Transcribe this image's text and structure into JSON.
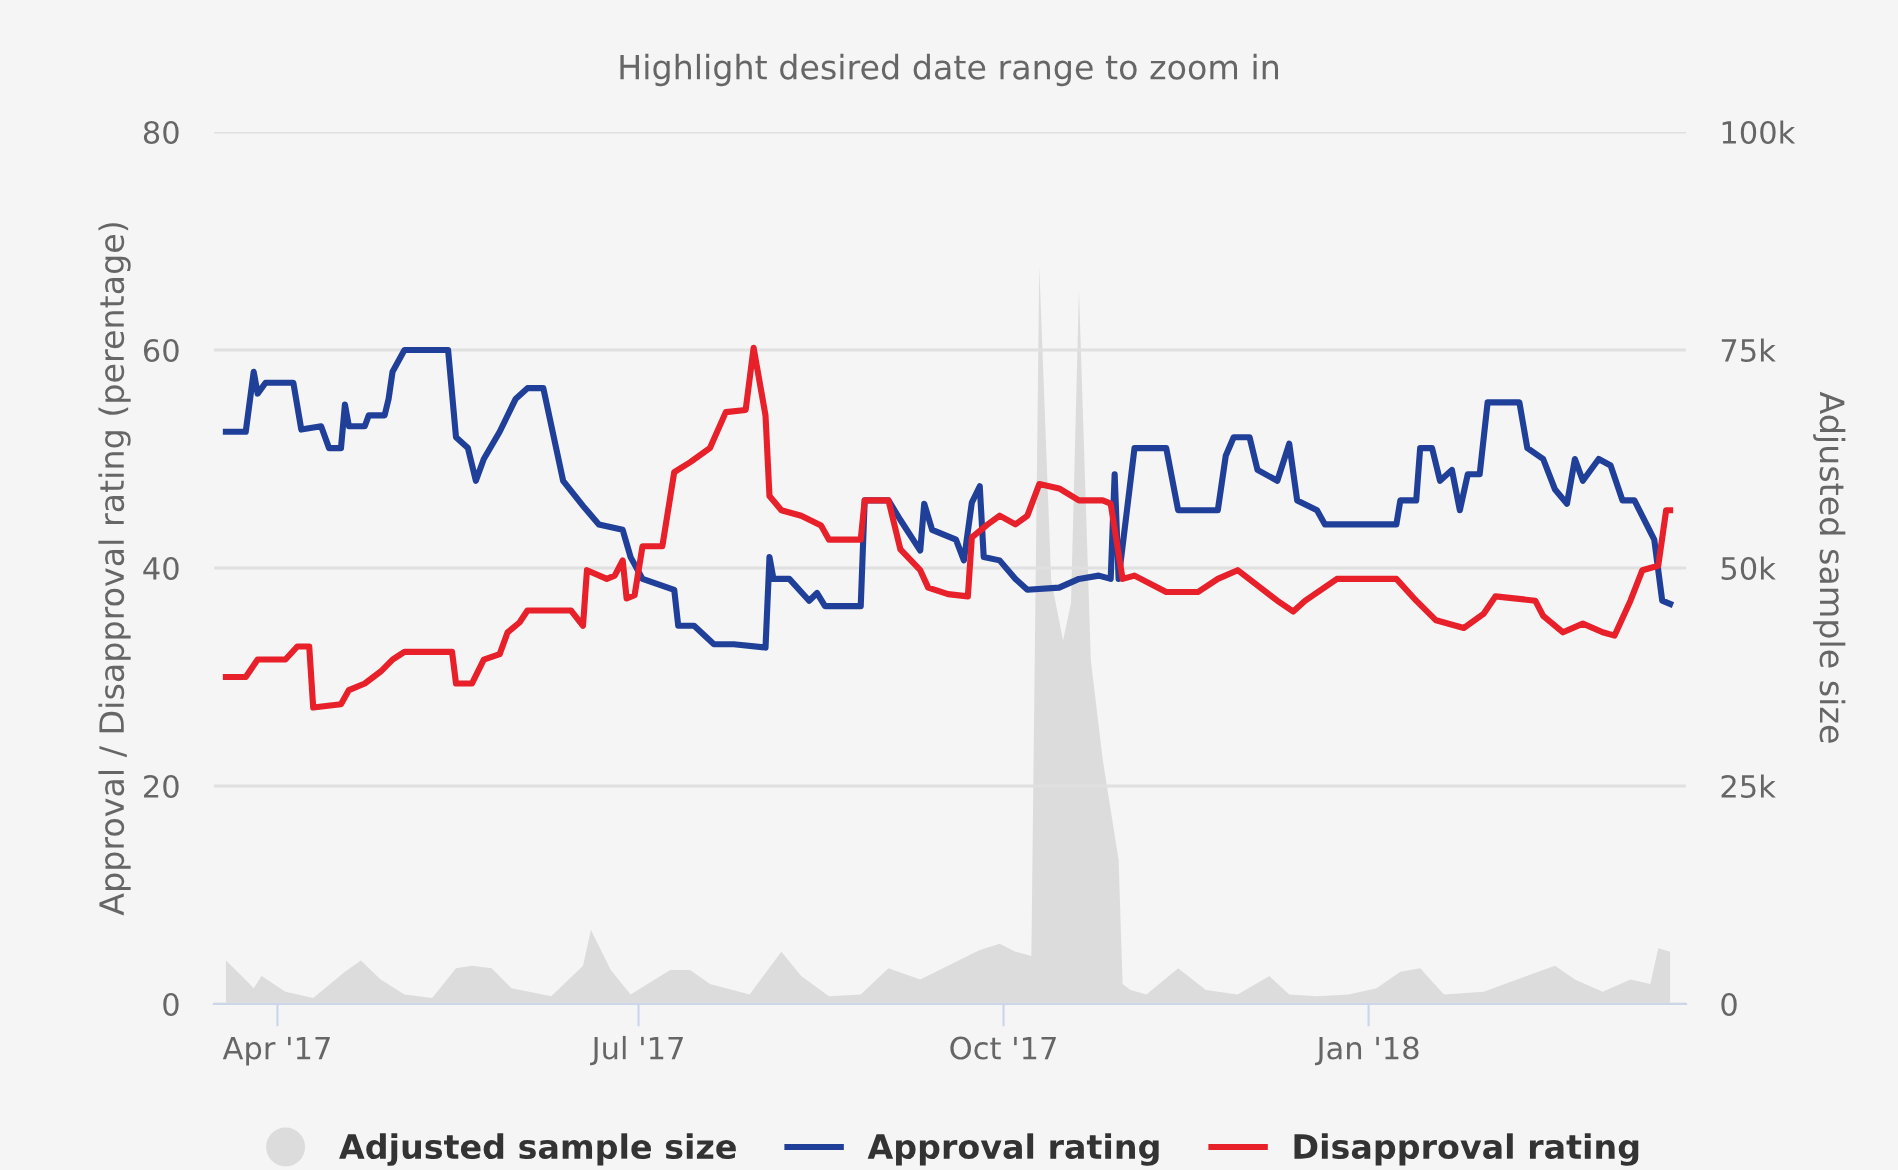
{
  "chart_data": {
    "type": "line",
    "subtitle": "Highlight desired date range to zoom in",
    "ylabel": "Approval / Disapproval rating (perentage)",
    "y2label": "Adjusted sample size",
    "xlim": [
      "2017-03-16",
      "2018-03-22"
    ],
    "xticks": [
      {
        "value": "2017-04-01",
        "label": "Apr '17"
      },
      {
        "value": "2017-07-01",
        "label": "Jul '17"
      },
      {
        "value": "2017-10-01",
        "label": "Oct '17"
      },
      {
        "value": "2018-01-01",
        "label": "Jan '18"
      }
    ],
    "ylim": [
      0,
      80
    ],
    "yticks": [
      0,
      20,
      40,
      60,
      80
    ],
    "y2lim": [
      0,
      100000
    ],
    "y2ticks": [
      0,
      {
        "value": 25000,
        "label": "25k"
      },
      {
        "value": 50000,
        "label": "50k"
      },
      {
        "value": 75000,
        "label": "75k"
      },
      {
        "value": 100000,
        "label": "100k"
      }
    ],
    "grid": "y",
    "legend": "bottom",
    "series": [
      {
        "name": "Adjusted sample size",
        "type": "area",
        "axis": "y2",
        "color": "#dcdcdc",
        "x": [
          "2017-03-19",
          "2017-03-23",
          "2017-03-26",
          "2017-03-28",
          "2017-04-03",
          "2017-04-10",
          "2017-04-18",
          "2017-04-22",
          "2017-04-27",
          "2017-05-03",
          "2017-05-10",
          "2017-05-16",
          "2017-05-20",
          "2017-05-25",
          "2017-05-30",
          "2017-06-09",
          "2017-06-17",
          "2017-06-19",
          "2017-06-24",
          "2017-06-29",
          "2017-07-09",
          "2017-07-14",
          "2017-07-19",
          "2017-07-29",
          "2017-08-06",
          "2017-08-11",
          "2017-08-18",
          "2017-08-26",
          "2017-09-02",
          "2017-09-10",
          "2017-09-17",
          "2017-09-25",
          "2017-09-30",
          "2017-10-04",
          "2017-10-08",
          "2017-10-10",
          "2017-10-13",
          "2017-10-16",
          "2017-10-18",
          "2017-10-20",
          "2017-10-23",
          "2017-10-26",
          "2017-10-30",
          "2017-10-31",
          "2017-11-02",
          "2017-11-06",
          "2017-11-14",
          "2017-11-21",
          "2017-11-29",
          "2017-12-07",
          "2017-12-12",
          "2017-12-19",
          "2017-12-27",
          "2018-01-03",
          "2018-01-09",
          "2018-01-14",
          "2018-01-20",
          "2018-01-30",
          "2018-02-11",
          "2018-02-17",
          "2018-02-22",
          "2018-03-01",
          "2018-03-08",
          "2018-03-13",
          "2018-03-15",
          "2018-03-18"
        ],
        "values": [
          5000,
          3200,
          1800,
          3200,
          1400,
          700,
          3700,
          5000,
          2800,
          1100,
          700,
          4100,
          4400,
          4100,
          1800,
          900,
          4400,
          8500,
          3900,
          1100,
          3900,
          3900,
          2300,
          1100,
          6000,
          3200,
          900,
          1100,
          4100,
          2800,
          4400,
          6200,
          6900,
          6000,
          5500,
          84600,
          48600,
          41700,
          46000,
          81900,
          39400,
          28000,
          16500,
          2300,
          1600,
          1100,
          4100,
          1600,
          1100,
          3200,
          1100,
          900,
          1100,
          1800,
          3700,
          4100,
          1100,
          1400,
          3400,
          4400,
          2800,
          1400,
          2800,
          2300,
          6400,
          6000
        ]
      },
      {
        "name": "Approval rating",
        "color": "#1f3f99",
        "x": [
          "2017-03-19",
          "2017-03-24",
          "2017-03-26",
          "2017-03-27",
          "2017-03-29",
          "2017-04-05",
          "2017-04-07",
          "2017-04-12",
          "2017-04-14",
          "2017-04-17",
          "2017-04-18",
          "2017-04-19",
          "2017-04-23",
          "2017-04-24",
          "2017-04-28",
          "2017-04-29",
          "2017-04-30",
          "2017-05-03",
          "2017-05-14",
          "2017-05-16",
          "2017-05-19",
          "2017-05-21",
          "2017-05-23",
          "2017-05-27",
          "2017-05-31",
          "2017-06-03",
          "2017-06-07",
          "2017-06-12",
          "2017-06-17",
          "2017-06-21",
          "2017-06-27",
          "2017-06-29",
          "2017-07-02",
          "2017-07-10",
          "2017-07-11",
          "2017-07-15",
          "2017-07-20",
          "2017-07-25",
          "2017-08-02",
          "2017-08-03",
          "2017-08-04",
          "2017-08-08",
          "2017-08-13",
          "2017-08-15",
          "2017-08-17",
          "2017-08-26",
          "2017-08-27",
          "2017-09-02",
          "2017-09-05",
          "2017-09-10",
          "2017-09-11",
          "2017-09-13",
          "2017-09-19",
          "2017-09-21",
          "2017-09-23",
          "2017-09-25",
          "2017-09-26",
          "2017-09-30",
          "2017-10-04",
          "2017-10-07",
          "2017-10-15",
          "2017-10-20",
          "2017-10-25",
          "2017-10-28",
          "2017-10-29",
          "2017-10-30",
          "2017-11-03",
          "2017-11-11",
          "2017-11-14",
          "2017-11-24",
          "2017-11-26",
          "2017-11-28",
          "2017-12-02",
          "2017-12-04",
          "2017-12-09",
          "2017-12-12",
          "2017-12-14",
          "2017-12-19",
          "2017-12-21",
          "2018-01-08",
          "2018-01-09",
          "2018-01-13",
          "2018-01-14",
          "2018-01-17",
          "2018-01-19",
          "2018-01-22",
          "2018-01-24",
          "2018-01-26",
          "2018-01-29",
          "2018-01-31",
          "2018-02-08",
          "2018-02-10",
          "2018-02-14",
          "2018-02-17",
          "2018-02-20",
          "2018-02-22",
          "2018-02-24",
          "2018-02-28",
          "2018-03-03",
          "2018-03-06",
          "2018-03-09",
          "2018-03-14",
          "2018-03-16",
          "2018-03-18"
        ],
        "values": [
          52.5,
          52.5,
          58,
          56,
          57,
          57,
          52.7,
          53,
          51,
          51,
          55,
          53,
          53,
          54,
          54,
          55.5,
          58,
          60,
          60,
          52,
          51,
          48,
          50,
          52.5,
          55.5,
          56.5,
          56.5,
          48,
          45.7,
          44,
          43.5,
          41,
          39,
          38,
          34.7,
          34.7,
          33,
          33,
          32.7,
          41,
          39,
          39,
          37,
          37.7,
          36.5,
          36.5,
          46.2,
          46.2,
          44.4,
          41.6,
          45.9,
          43.5,
          42.6,
          40.7,
          46,
          47.5,
          41,
          40.7,
          39,
          38,
          38.2,
          39,
          39.3,
          39,
          48.6,
          39,
          51,
          51,
          45.3,
          45.3,
          50.3,
          52,
          52,
          49,
          48,
          51.4,
          46.2,
          45.3,
          44,
          44,
          46.2,
          46.2,
          51,
          51,
          48,
          49,
          45.3,
          48.6,
          48.6,
          55.2,
          55.2,
          51,
          50,
          47.2,
          45.9,
          50,
          48,
          50,
          49.4,
          46.2,
          46.2,
          42.6,
          37,
          36.7
        ]
      },
      {
        "name": "Disapproval rating",
        "color": "#e8202a",
        "x": [
          "2017-03-19",
          "2017-03-24",
          "2017-03-27",
          "2017-04-03",
          "2017-04-06",
          "2017-04-09",
          "2017-04-10",
          "2017-04-17",
          "2017-04-19",
          "2017-04-23",
          "2017-04-27",
          "2017-04-30",
          "2017-05-03",
          "2017-05-15",
          "2017-05-16",
          "2017-05-20",
          "2017-05-23",
          "2017-05-27",
          "2017-05-29",
          "2017-06-01",
          "2017-06-03",
          "2017-06-14",
          "2017-06-17",
          "2017-06-18",
          "2017-06-23",
          "2017-06-25",
          "2017-06-27",
          "2017-06-28",
          "2017-06-30",
          "2017-07-02",
          "2017-07-07",
          "2017-07-10",
          "2017-07-14",
          "2017-07-19",
          "2017-07-23",
          "2017-07-28",
          "2017-07-30",
          "2017-08-02",
          "2017-08-03",
          "2017-08-06",
          "2017-08-11",
          "2017-08-16",
          "2017-08-18",
          "2017-08-26",
          "2017-08-27",
          "2017-09-02",
          "2017-09-05",
          "2017-09-10",
          "2017-09-12",
          "2017-09-17",
          "2017-09-22",
          "2017-09-23",
          "2017-09-27",
          "2017-09-30",
          "2017-10-04",
          "2017-10-07",
          "2017-10-10",
          "2017-10-15",
          "2017-10-20",
          "2017-10-26",
          "2017-10-28",
          "2017-10-31",
          "2017-11-03",
          "2017-11-11",
          "2017-11-19",
          "2017-11-24",
          "2017-11-29",
          "2017-12-09",
          "2017-12-13",
          "2017-12-16",
          "2017-12-24",
          "2018-01-08",
          "2018-01-13",
          "2018-01-18",
          "2018-01-25",
          "2018-01-30",
          "2018-02-02",
          "2018-02-12",
          "2018-02-14",
          "2018-02-19",
          "2018-02-24",
          "2018-03-01",
          "2018-03-04",
          "2018-03-08",
          "2018-03-11",
          "2018-03-15",
          "2018-03-17",
          "2018-03-18"
        ],
        "values": [
          30,
          30,
          31.6,
          31.6,
          32.8,
          32.8,
          27.2,
          27.5,
          28.8,
          29.4,
          30.5,
          31.6,
          32.3,
          32.3,
          29.4,
          29.4,
          31.6,
          32.1,
          34.1,
          35,
          36.1,
          36.1,
          34.7,
          39.8,
          39,
          39.3,
          40.7,
          37.2,
          37.5,
          42,
          42,
          48.8,
          49.7,
          51,
          54.3,
          54.5,
          60.2,
          54,
          46.6,
          45.3,
          44.8,
          43.9,
          42.6,
          42.6,
          46.2,
          46.2,
          41.7,
          39.8,
          38.2,
          37.6,
          37.4,
          42.8,
          44,
          44.8,
          44,
          44.8,
          47.7,
          47.3,
          46.2,
          46.2,
          45.9,
          39,
          39.3,
          37.8,
          37.8,
          39,
          39.8,
          37,
          36,
          37,
          39,
          39,
          37,
          35.2,
          34.5,
          35.8,
          37.4,
          37,
          35.6,
          34.1,
          34.9,
          34.1,
          33.8,
          37,
          39.8,
          40.2,
          45.3,
          45.3
        ]
      }
    ]
  }
}
